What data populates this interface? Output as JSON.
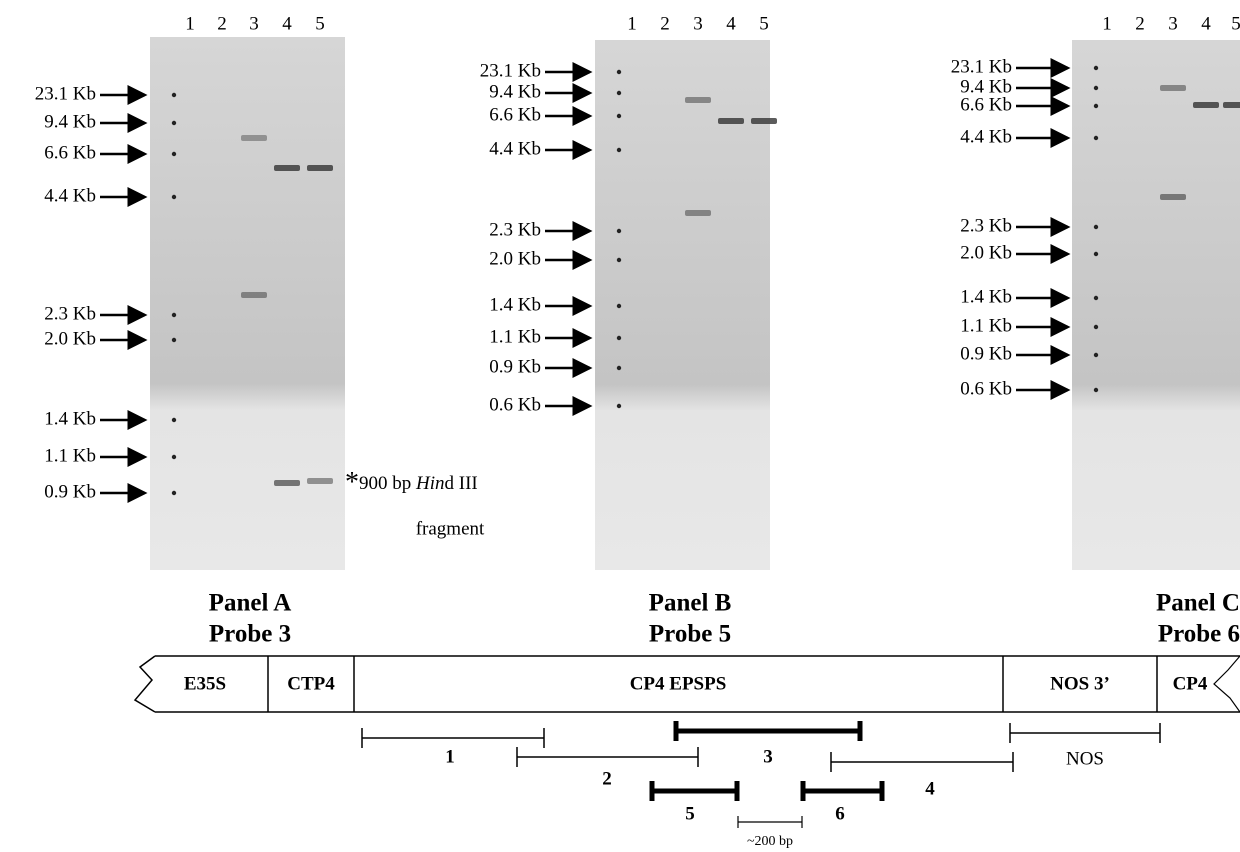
{
  "panels": [
    {
      "lanes": [
        "1",
        "2",
        "3",
        "4",
        "5"
      ],
      "markers": [
        "23.1 Kb",
        "9.4 Kb",
        "6.6 Kb",
        "4.4 Kb",
        "2.3 Kb",
        "2.0 Kb",
        "1.4 Kb",
        "1.1 Kb",
        "0.9 Kb"
      ],
      "title": "Panel A",
      "probe": "Probe 3"
    },
    {
      "lanes": [
        "1",
        "2",
        "3",
        "4",
        "5"
      ],
      "markers": [
        "23.1 Kb",
        "9.4 Kb",
        "6.6 Kb",
        "4.4 Kb",
        "2.3 Kb",
        "2.0 Kb",
        "1.4 Kb",
        "1.1 Kb",
        "0.9 Kb",
        "0.6 Kb"
      ],
      "title": "Panel B",
      "probe": "Probe 5"
    },
    {
      "lanes": [
        "1",
        "2",
        "3",
        "4",
        "5"
      ],
      "markers": [
        "23.1 Kb",
        "9.4 Kb",
        "6.6 Kb",
        "4.4 Kb",
        "2.3 Kb",
        "2.0 Kb",
        "1.4 Kb",
        "1.1 Kb",
        "0.9 Kb",
        "0.6 Kb"
      ],
      "title": "Panel C",
      "probe": "Probe 6"
    }
  ],
  "note": {
    "star": "*",
    "text": "900 bp ",
    "italic": "Hin",
    "rest": "d III",
    "line2": "fragment"
  },
  "map": {
    "segments": [
      "E35S",
      "CTP4",
      "CP4 EPSPS",
      "NOS 3’",
      "CP4"
    ],
    "probes": [
      "1",
      "2",
      "3",
      "4",
      "NOS",
      "5",
      "6"
    ],
    "scale": "~200 bp"
  }
}
